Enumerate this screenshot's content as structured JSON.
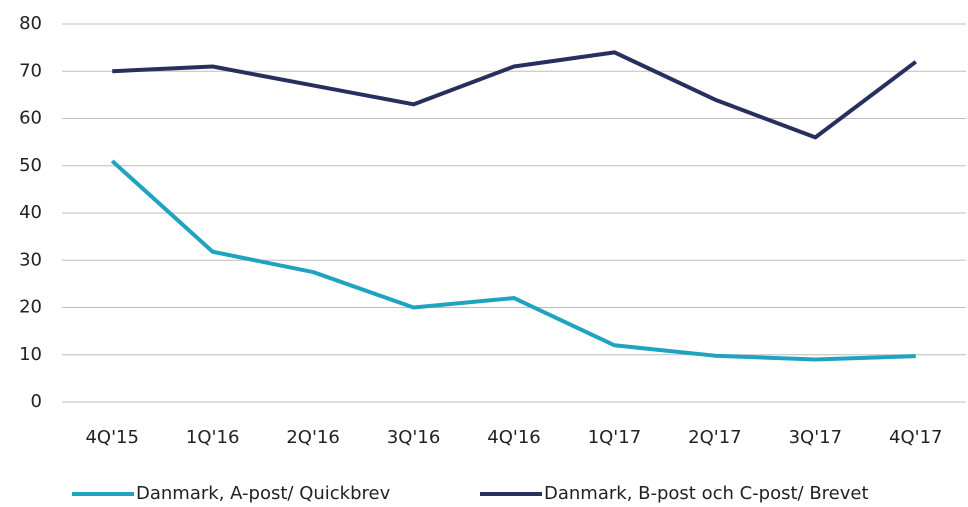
{
  "chart_data": {
    "type": "line",
    "categories": [
      "4Q'15",
      "1Q'16",
      "2Q'16",
      "3Q'16",
      "4Q'16",
      "1Q'17",
      "2Q'17",
      "3Q'17",
      "4Q'17"
    ],
    "series": [
      {
        "name": "Danmark, A-post/ Quickbrev",
        "color": "#1fa3bf",
        "values": [
          51,
          31.8,
          27.5,
          20,
          22,
          12,
          9.8,
          9,
          9.7
        ]
      },
      {
        "name": "Danmark, B-post och C-post/ Brevet",
        "color": "#262f5e",
        "values": [
          70,
          71,
          67,
          63,
          71,
          74,
          64,
          56,
          72
        ]
      }
    ],
    "ylim": [
      0,
      80
    ],
    "yticks": [
      0,
      10,
      20,
      30,
      40,
      50,
      60,
      70,
      80
    ],
    "grid": true,
    "legend": "bottom"
  }
}
